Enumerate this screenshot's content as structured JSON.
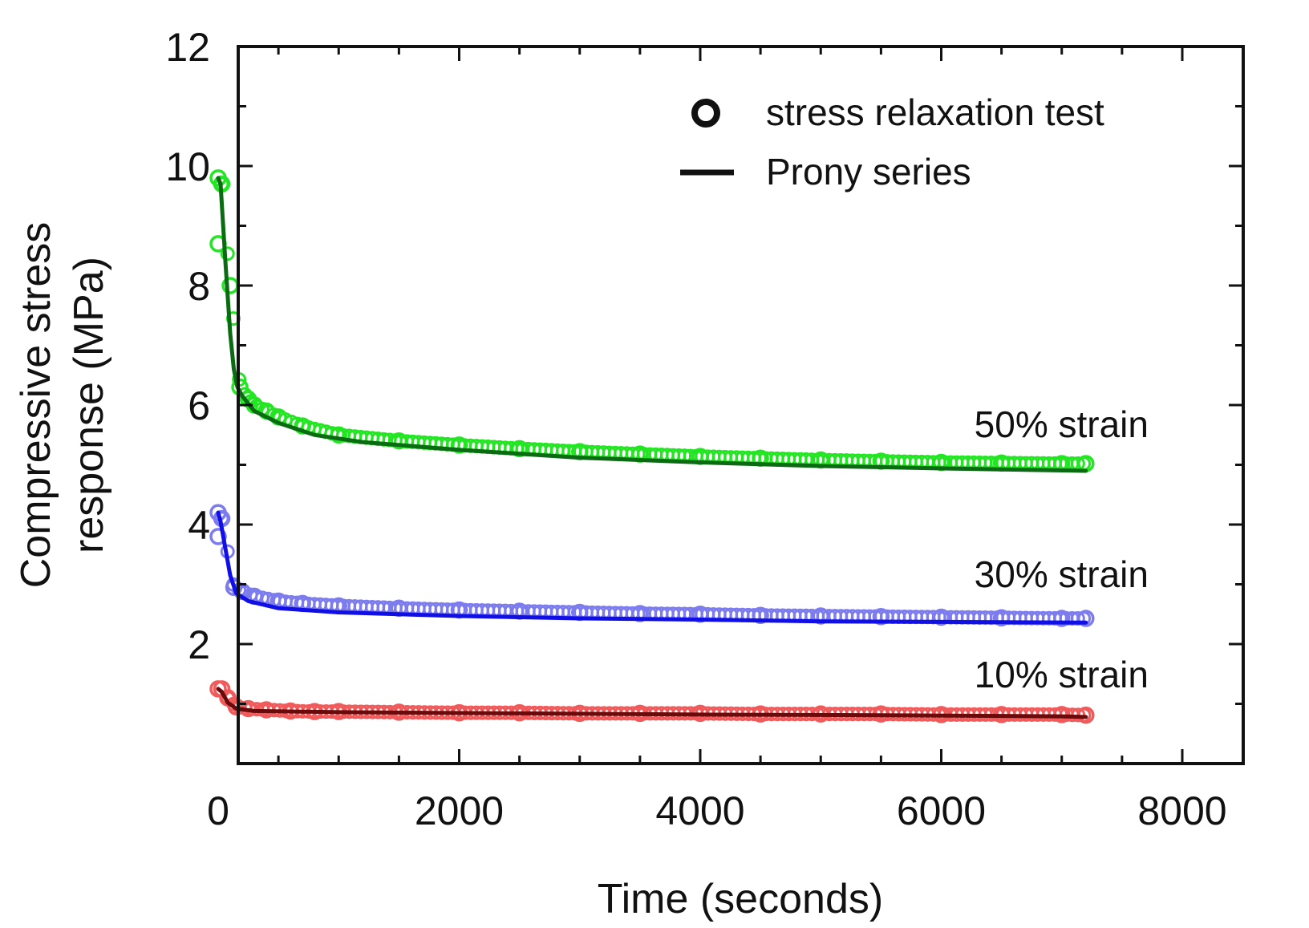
{
  "chart_data": {
    "type": "scatter",
    "title": "",
    "xlabel": "Time (seconds)",
    "ylabel_lines": [
      "Compressive stress",
      "response (MPa)"
    ],
    "xlim": [
      0,
      8000
    ],
    "ylim": [
      0,
      12
    ],
    "xticks": [
      0,
      2000,
      4000,
      6000,
      8000
    ],
    "yticks": [
      2,
      4,
      6,
      8,
      10,
      12
    ],
    "x_minor_step": 500,
    "y_minor_step": 1,
    "grid": false,
    "legend": {
      "placement": "top-right",
      "entries": [
        {
          "label": "stress relaxation test",
          "marker": "circle"
        },
        {
          "label": "Prony series",
          "marker": "line"
        }
      ]
    },
    "series": [
      {
        "label": "50% strain",
        "test_color": "#22e622",
        "fit_color": "#0a6b12",
        "test": [
          [
            0,
            8.7
          ],
          [
            0,
            9.8
          ],
          [
            30,
            9.7
          ],
          [
            100,
            8.0
          ],
          [
            180,
            6.3
          ],
          [
            250,
            6.1
          ],
          [
            300,
            6.0
          ],
          [
            400,
            5.9
          ],
          [
            500,
            5.8
          ],
          [
            700,
            5.65
          ],
          [
            1000,
            5.5
          ],
          [
            1500,
            5.4
          ],
          [
            2000,
            5.33
          ],
          [
            2500,
            5.27
          ],
          [
            3000,
            5.22
          ],
          [
            3500,
            5.18
          ],
          [
            4000,
            5.14
          ],
          [
            4500,
            5.11
          ],
          [
            5000,
            5.08
          ],
          [
            5500,
            5.06
          ],
          [
            6000,
            5.04
          ],
          [
            6500,
            5.03
          ],
          [
            7000,
            5.02
          ],
          [
            7200,
            5.02
          ]
        ],
        "fit": [
          [
            0,
            9.8
          ],
          [
            20,
            9.7
          ],
          [
            60,
            8.4
          ],
          [
            100,
            7.2
          ],
          [
            130,
            6.6
          ],
          [
            160,
            6.3
          ],
          [
            200,
            6.15
          ],
          [
            300,
            5.9
          ],
          [
            500,
            5.7
          ],
          [
            800,
            5.5
          ],
          [
            1200,
            5.38
          ],
          [
            2000,
            5.25
          ],
          [
            3000,
            5.12
          ],
          [
            4000,
            5.04
          ],
          [
            5000,
            4.98
          ],
          [
            6000,
            4.94
          ],
          [
            7200,
            4.9
          ]
        ]
      },
      {
        "label": "30% strain",
        "test_color": "#7c7cee",
        "fit_color": "#1010e6",
        "test": [
          [
            0,
            3.8
          ],
          [
            0,
            4.2
          ],
          [
            30,
            4.1
          ],
          [
            130,
            2.95
          ],
          [
            200,
            2.88
          ],
          [
            300,
            2.8
          ],
          [
            500,
            2.72
          ],
          [
            700,
            2.68
          ],
          [
            1000,
            2.64
          ],
          [
            1500,
            2.6
          ],
          [
            2000,
            2.57
          ],
          [
            2500,
            2.55
          ],
          [
            3000,
            2.53
          ],
          [
            3500,
            2.51
          ],
          [
            4000,
            2.5
          ],
          [
            4500,
            2.48
          ],
          [
            5000,
            2.47
          ],
          [
            5500,
            2.46
          ],
          [
            6000,
            2.45
          ],
          [
            6500,
            2.44
          ],
          [
            7000,
            2.43
          ],
          [
            7200,
            2.43
          ]
        ],
        "fit": [
          [
            0,
            4.2
          ],
          [
            20,
            4.05
          ],
          [
            60,
            3.6
          ],
          [
            100,
            3.15
          ],
          [
            150,
            2.85
          ],
          [
            250,
            2.72
          ],
          [
            500,
            2.6
          ],
          [
            1000,
            2.53
          ],
          [
            2000,
            2.47
          ],
          [
            3000,
            2.43
          ],
          [
            4000,
            2.41
          ],
          [
            5000,
            2.38
          ],
          [
            6000,
            2.37
          ],
          [
            7200,
            2.36
          ]
        ]
      },
      {
        "label": "10% strain",
        "test_color": "#f05a5a",
        "fit_color": "#6b0a0a",
        "test": [
          [
            0,
            1.25
          ],
          [
            30,
            1.25
          ],
          [
            80,
            1.1
          ],
          [
            150,
            0.95
          ],
          [
            250,
            0.92
          ],
          [
            400,
            0.9
          ],
          [
            600,
            0.88
          ],
          [
            800,
            0.87
          ],
          [
            1000,
            0.87
          ],
          [
            1500,
            0.86
          ],
          [
            2000,
            0.85
          ],
          [
            2500,
            0.85
          ],
          [
            3000,
            0.84
          ],
          [
            3500,
            0.84
          ],
          [
            4000,
            0.84
          ],
          [
            4500,
            0.83
          ],
          [
            5000,
            0.83
          ],
          [
            5500,
            0.83
          ],
          [
            6000,
            0.82
          ],
          [
            6500,
            0.82
          ],
          [
            7000,
            0.82
          ],
          [
            7200,
            0.81
          ]
        ],
        "fit": [
          [
            0,
            1.25
          ],
          [
            30,
            1.2
          ],
          [
            80,
            1.02
          ],
          [
            150,
            0.92
          ],
          [
            300,
            0.88
          ],
          [
            1000,
            0.86
          ],
          [
            2500,
            0.84
          ],
          [
            4000,
            0.82
          ],
          [
            5500,
            0.81
          ],
          [
            7000,
            0.79
          ],
          [
            7200,
            0.78
          ]
        ]
      }
    ]
  }
}
